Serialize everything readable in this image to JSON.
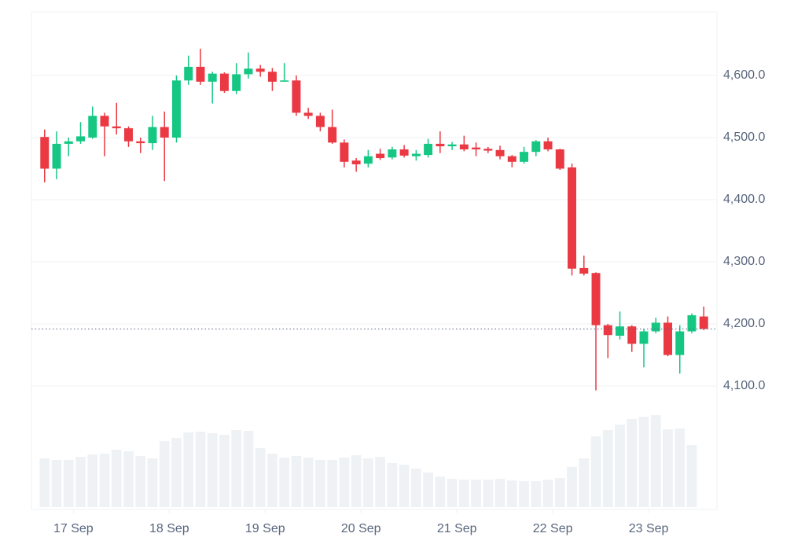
{
  "chart_data": {
    "type": "candlestick",
    "x": [
      0,
      1,
      2,
      3,
      4,
      5,
      6,
      7,
      8,
      9,
      10,
      11,
      12,
      13,
      14,
      15,
      16,
      17,
      18,
      19,
      20,
      21,
      22,
      23,
      24,
      25,
      26,
      27,
      28,
      29,
      30,
      31,
      32,
      33,
      34,
      35,
      36,
      37,
      38,
      39,
      40,
      41,
      42,
      43,
      44,
      45,
      46,
      47,
      48,
      49,
      50,
      51,
      52,
      53,
      54,
      55
    ],
    "open": [
      4501,
      4450,
      4490,
      4494,
      4500,
      4535,
      4518,
      4515,
      4494,
      4491,
      4517,
      4500,
      4592,
      4614,
      4590,
      4603,
      4575,
      4602,
      4611,
      4606,
      4590,
      4592,
      4540,
      4535,
      4517,
      4492,
      4463,
      4458,
      4474,
      4468,
      4481,
      4470,
      4472,
      4490,
      4486,
      4489,
      4484,
      4482,
      4480,
      4470,
      4461,
      4477,
      4494,
      4481,
      4452,
      4290,
      4282,
      4198,
      4181,
      4196,
      4168,
      4188,
      4202,
      4150,
      4188,
      4212
    ],
    "high": [
      4513,
      4510,
      4500,
      4525,
      4550,
      4540,
      4556,
      4518,
      4500,
      4535,
      4542,
      4600,
      4632,
      4643,
      4606,
      4605,
      4620,
      4637,
      4617,
      4612,
      4620,
      4600,
      4548,
      4540,
      4545,
      4497,
      4467,
      4480,
      4482,
      4485,
      4488,
      4480,
      4498,
      4510,
      4493,
      4503,
      4492,
      4485,
      4487,
      4472,
      4485,
      4496,
      4500,
      4482,
      4458,
      4310,
      4283,
      4200,
      4220,
      4198,
      4192,
      4210,
      4212,
      4198,
      4217,
      4228
    ],
    "low": [
      4428,
      4433,
      4470,
      4490,
      4498,
      4470,
      4505,
      4485,
      4475,
      4480,
      4430,
      4492,
      4585,
      4585,
      4555,
      4572,
      4570,
      4595,
      4598,
      4575,
      4590,
      4535,
      4530,
      4510,
      4490,
      4452,
      4445,
      4452,
      4464,
      4465,
      4468,
      4463,
      4468,
      4475,
      4480,
      4478,
      4470,
      4475,
      4465,
      4452,
      4458,
      4470,
      4478,
      4448,
      4278,
      4278,
      4093,
      4145,
      4175,
      4155,
      4130,
      4185,
      4148,
      4120,
      4185,
      4190
    ],
    "close": [
      4450,
      4490,
      4494,
      4502,
      4535,
      4518,
      4515,
      4494,
      4491,
      4517,
      4500,
      4592,
      4614,
      4590,
      4603,
      4575,
      4602,
      4611,
      4606,
      4590,
      4592,
      4540,
      4535,
      4517,
      4492,
      4461,
      4457,
      4470,
      4467,
      4481,
      4471,
      4474,
      4490,
      4486,
      4489,
      4481,
      4481,
      4479,
      4470,
      4461,
      4477,
      4494,
      4481,
      4450,
      4289,
      4281,
      4198,
      4182,
      4196,
      4168,
      4188,
      4202,
      4150,
      4188,
      4214,
      4192
    ],
    "volume": [
      62,
      60,
      60,
      64,
      67,
      68,
      73,
      71,
      65,
      62,
      84,
      88,
      95,
      96,
      94,
      92,
      98,
      97,
      75,
      68,
      63,
      65,
      63,
      60,
      60,
      63,
      66,
      62,
      64,
      56,
      54,
      49,
      44,
      39,
      36,
      35,
      35,
      35,
      36,
      34,
      33,
      33,
      35,
      37,
      51,
      62,
      90,
      98,
      105,
      112,
      115,
      117,
      99,
      100,
      79,
      null
    ],
    "up_color": "#16c784",
    "down_color": "#ea3943",
    "volume_color": "#eff2f5",
    "last_price": 4192,
    "xlim": [
      -1.1,
      56.1
    ],
    "xticks": [
      {
        "value": 2.4,
        "label": "17 Sep"
      },
      {
        "value": 10.4,
        "label": "18 Sep"
      },
      {
        "value": 18.4,
        "label": "19 Sep"
      },
      {
        "value": 26.4,
        "label": "20 Sep"
      },
      {
        "value": 34.4,
        "label": "21 Sep"
      },
      {
        "value": 42.4,
        "label": "22 Sep"
      },
      {
        "value": 50.4,
        "label": "23 Sep"
      }
    ],
    "ylim": [
      4000,
      4700
    ],
    "yticks": [
      {
        "value": 4100,
        "label": "4,100.0"
      },
      {
        "value": 4200,
        "label": "4,200.0"
      },
      {
        "value": 4300,
        "label": "4,300.0"
      },
      {
        "value": 4400,
        "label": "4,400.0"
      },
      {
        "value": 4500,
        "label": "4,500.0"
      },
      {
        "value": 4600,
        "label": "4,600.0"
      }
    ],
    "volume_ylim": [
      0,
      130
    ],
    "grid": true
  }
}
